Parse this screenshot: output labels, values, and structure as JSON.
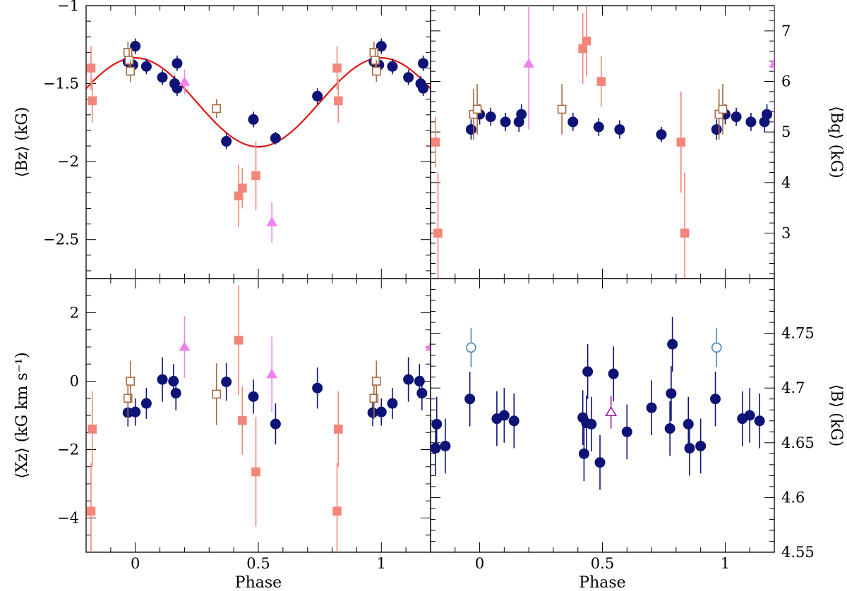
{
  "colors": {
    "navy": "#0e1377",
    "salmon": "#f3857a",
    "brown": "#a86a45",
    "violet": "#ee82ee",
    "purple": "#a21ca2",
    "steel": "#4a86be",
    "fit": "#dd1616"
  },
  "chart_data": [
    {
      "type": "scatter",
      "panel": "top-left",
      "ylabel": "⟨Bz⟩ (kG)",
      "xlabel": "",
      "xlim": [
        -0.2,
        1.2
      ],
      "ylim": [
        -2.75,
        -1.0
      ],
      "yticks": [
        -1,
        -1.5,
        -2,
        -2.5
      ],
      "yticklabels": [
        "−1",
        "−1.5",
        "−2",
        "−2.5"
      ],
      "xticklabels": [],
      "fit": {
        "label": "sinusoid fit",
        "mean": -1.62,
        "amplitude": 0.285,
        "peak_phase": 0.0
      },
      "series": [
        {
          "name": "navy filled circles",
          "marker": "circle",
          "filled": true,
          "color": "navy",
          "points": [
            [
              -0.03,
              -1.36,
              0.04
            ],
            [
              -0.01,
              -1.38,
              0.04
            ],
            [
              0.0,
              -1.26,
              0.05
            ],
            [
              0.045,
              -1.39,
              0.05
            ],
            [
              0.11,
              -1.46,
              0.05
            ],
            [
              0.16,
              -1.5,
              0.05
            ],
            [
              0.17,
              -1.53,
              0.05
            ],
            [
              0.17,
              -1.37,
              0.05
            ],
            [
              0.37,
              -1.87,
              0.05
            ],
            [
              0.48,
              -1.73,
              0.05
            ],
            [
              0.57,
              -1.85,
              0.04
            ],
            [
              0.74,
              -1.58,
              0.05
            ],
            [
              0.97,
              -1.36,
              0.04
            ],
            [
              0.99,
              -1.38,
              0.04
            ],
            [
              1.0,
              -1.26,
              0.05
            ],
            [
              1.045,
              -1.39,
              0.05
            ],
            [
              1.11,
              -1.46,
              0.05
            ],
            [
              1.16,
              -1.5,
              0.05
            ],
            [
              1.17,
              -1.53,
              0.05
            ],
            [
              1.17,
              -1.37,
              0.05
            ]
          ]
        },
        {
          "name": "salmon filled squares",
          "marker": "square",
          "filled": true,
          "color": "salmon",
          "points": [
            [
              -0.18,
              -1.4,
              0.14
            ],
            [
              -0.175,
              -1.61,
              0.14
            ],
            [
              0.42,
              -2.22,
              0.2
            ],
            [
              0.435,
              -2.17,
              0.13
            ],
            [
              0.49,
              -2.09,
              0.22
            ],
            [
              0.82,
              -1.4,
              0.14
            ],
            [
              0.825,
              -1.61,
              0.14
            ]
          ]
        },
        {
          "name": "brown open squares",
          "marker": "square",
          "filled": false,
          "color": "brown",
          "points": [
            [
              -0.03,
              -1.3,
              0.07
            ],
            [
              -0.025,
              -1.35,
              0.07
            ],
            [
              -0.02,
              -1.42,
              0.07
            ],
            [
              0.33,
              -1.66,
              0.06
            ],
            [
              0.97,
              -1.3,
              0.07
            ],
            [
              0.975,
              -1.35,
              0.07
            ],
            [
              0.98,
              -1.42,
              0.07
            ]
          ]
        },
        {
          "name": "violet filled triangles",
          "marker": "triangle",
          "filled": true,
          "color": "violet",
          "points": [
            [
              0.2,
              -1.49,
              0.08
            ],
            [
              0.555,
              -2.39,
              0.13
            ]
          ]
        }
      ]
    },
    {
      "type": "scatter",
      "panel": "top-right",
      "ylabel": "⟨Bq⟩ (kG)",
      "xlabel": "",
      "xlim": [
        -0.2,
        1.2
      ],
      "ylim": [
        2.1,
        7.5
      ],
      "yticks": [
        3,
        4,
        5,
        6,
        7
      ],
      "yticklabels": [
        "3",
        "4",
        "5",
        "6",
        "7"
      ],
      "xticklabels": [],
      "series": [
        {
          "name": "navy filled circles",
          "marker": "circle",
          "filled": true,
          "color": "navy",
          "points": [
            [
              -0.035,
              5.05,
              0.2
            ],
            [
              0.0,
              5.35,
              0.2
            ],
            [
              0.045,
              5.3,
              0.18
            ],
            [
              0.105,
              5.2,
              0.18
            ],
            [
              0.16,
              5.2,
              0.2
            ],
            [
              0.17,
              5.35,
              0.2
            ],
            [
              0.38,
              5.2,
              0.18
            ],
            [
              0.485,
              5.1,
              0.18
            ],
            [
              0.57,
              5.05,
              0.18
            ],
            [
              0.74,
              4.95,
              0.15
            ],
            [
              0.965,
              5.05,
              0.2
            ],
            [
              1.0,
              5.35,
              0.2
            ],
            [
              1.045,
              5.3,
              0.18
            ],
            [
              1.105,
              5.2,
              0.18
            ],
            [
              1.16,
              5.2,
              0.2
            ],
            [
              1.17,
              5.35,
              0.2
            ]
          ]
        },
        {
          "name": "salmon filled squares",
          "marker": "square",
          "filled": true,
          "color": "salmon",
          "points": [
            [
              -0.18,
              4.8,
              0.5
            ],
            [
              -0.17,
              3.0,
              1.2
            ],
            [
              0.42,
              6.65,
              0.7
            ],
            [
              0.435,
              6.8,
              0.7
            ],
            [
              0.495,
              6.0,
              0.5
            ],
            [
              0.82,
              4.8,
              1.0
            ],
            [
              0.835,
              3.0,
              1.2
            ]
          ]
        },
        {
          "name": "brown open squares",
          "marker": "square",
          "filled": false,
          "color": "brown",
          "points": [
            [
              -0.025,
              5.35,
              0.5
            ],
            [
              -0.01,
              5.45,
              0.5
            ],
            [
              0.335,
              5.45,
              0.5
            ],
            [
              0.975,
              5.35,
              0.5
            ],
            [
              0.99,
              5.45,
              0.5
            ]
          ]
        },
        {
          "name": "violet filled triangles",
          "marker": "triangle",
          "filled": true,
          "color": "violet",
          "points": [
            [
              0.2,
              6.35,
              1.3
            ],
            [
              1.2,
              6.35,
              1.3
            ]
          ]
        }
      ]
    },
    {
      "type": "scatter",
      "panel": "bottom-left",
      "ylabel": "⟨Xz⟩ (kG km s⁻¹)",
      "xlabel": "Phase",
      "xlim": [
        -0.2,
        1.2
      ],
      "ylim": [
        -5.0,
        3.0
      ],
      "yticks": [
        2,
        0,
        -2,
        -4
      ],
      "yticklabels": [
        "2",
        "0",
        "−2",
        "−4"
      ],
      "xticks": [
        0,
        0.5,
        1
      ],
      "xticklabels": [
        "0",
        "0.5",
        "1"
      ],
      "series": [
        {
          "name": "navy filled circles",
          "marker": "circle",
          "filled": true,
          "color": "navy",
          "points": [
            [
              -0.03,
              -0.92,
              0.4
            ],
            [
              0.0,
              -0.9,
              0.4
            ],
            [
              0.045,
              -0.65,
              0.45
            ],
            [
              0.11,
              0.05,
              0.65
            ],
            [
              0.155,
              0.0,
              0.5
            ],
            [
              0.165,
              -0.35,
              0.5
            ],
            [
              0.37,
              -0.02,
              0.55
            ],
            [
              0.48,
              -0.45,
              0.5
            ],
            [
              0.57,
              -1.25,
              0.6
            ],
            [
              0.74,
              -0.2,
              0.6
            ],
            [
              0.965,
              -0.92,
              0.4
            ],
            [
              1.0,
              -0.9,
              0.4
            ],
            [
              1.045,
              -0.65,
              0.45
            ],
            [
              1.11,
              0.05,
              0.65
            ],
            [
              1.155,
              0.0,
              0.5
            ],
            [
              1.165,
              -0.35,
              0.5
            ]
          ]
        },
        {
          "name": "salmon filled squares",
          "marker": "square",
          "filled": true,
          "color": "salmon",
          "points": [
            [
              -0.18,
              -3.8,
              1.4
            ],
            [
              -0.175,
              -1.4,
              1.1
            ],
            [
              0.42,
              1.2,
              1.6
            ],
            [
              0.435,
              -1.15,
              1.0
            ],
            [
              0.49,
              -2.65,
              1.6
            ],
            [
              0.82,
              -3.8,
              1.4
            ],
            [
              0.825,
              -1.4,
              1.1
            ]
          ]
        },
        {
          "name": "brown open squares",
          "marker": "square",
          "filled": false,
          "color": "brown",
          "points": [
            [
              -0.03,
              -0.5,
              0.6
            ],
            [
              -0.02,
              0.0,
              0.6
            ],
            [
              0.33,
              -0.38,
              0.9
            ],
            [
              0.97,
              -0.5,
              0.6
            ],
            [
              0.98,
              0.0,
              0.6
            ]
          ]
        },
        {
          "name": "violet filled triangles",
          "marker": "triangle",
          "filled": true,
          "color": "violet",
          "points": [
            [
              0.2,
              1.0,
              0.9
            ],
            [
              0.555,
              0.2,
              1.1
            ],
            [
              1.2,
              1.0,
              0.9
            ]
          ]
        }
      ]
    },
    {
      "type": "scatter",
      "panel": "bottom-right",
      "ylabel": "⟨B⟩ (kG)",
      "xlabel": "Phase",
      "xlim": [
        -0.2,
        1.2
      ],
      "ylim": [
        4.55,
        4.8
      ],
      "yticks": [
        4.55,
        4.6,
        4.65,
        4.7,
        4.75
      ],
      "yticklabels": [
        "4.55",
        "4.6",
        "4.65",
        "4.7",
        "4.75"
      ],
      "xticks": [
        0,
        0.5,
        1
      ],
      "xticklabels": [
        "0",
        "0.5",
        "1"
      ],
      "series": [
        {
          "name": "navy filled circles",
          "marker": "circle",
          "filled": true,
          "color": "navy",
          "points": [
            [
              -0.18,
              4.645,
              0.025
            ],
            [
              -0.175,
              4.667,
              0.025
            ],
            [
              -0.14,
              4.647,
              0.025
            ],
            [
              -0.04,
              4.69,
              0.025
            ],
            [
              0.07,
              4.672,
              0.025
            ],
            [
              0.1,
              4.675,
              0.025
            ],
            [
              0.14,
              4.67,
              0.025
            ],
            [
              0.42,
              4.673,
              0.025
            ],
            [
              0.425,
              4.64,
              0.025
            ],
            [
              0.435,
              4.668,
              0.025
            ],
            [
              0.44,
              4.715,
              0.025
            ],
            [
              0.455,
              4.667,
              0.025
            ],
            [
              0.49,
              4.632,
              0.025
            ],
            [
              0.545,
              4.713,
              0.025
            ],
            [
              0.6,
              4.66,
              0.025
            ],
            [
              0.7,
              4.682,
              0.025
            ],
            [
              0.775,
              4.663,
              0.025
            ],
            [
              0.78,
              4.695,
              0.025
            ],
            [
              0.785,
              4.74,
              0.025
            ],
            [
              0.85,
              4.667,
              0.025
            ],
            [
              0.855,
              4.645,
              0.025
            ],
            [
              0.9,
              4.647,
              0.025
            ],
            [
              0.96,
              4.69,
              0.025
            ],
            [
              1.07,
              4.672,
              0.025
            ],
            [
              1.1,
              4.675,
              0.025
            ],
            [
              1.14,
              4.67,
              0.025
            ]
          ]
        },
        {
          "name": "steel-blue open circles",
          "marker": "circle",
          "filled": false,
          "color": "steel",
          "points": [
            [
              -0.035,
              4.737,
              0.018
            ],
            [
              0.965,
              4.737,
              0.018
            ]
          ]
        },
        {
          "name": "purple open triangle",
          "marker": "triangle",
          "filled": false,
          "color": "purple",
          "points": [
            [
              0.535,
              4.678,
              0.015
            ]
          ]
        }
      ]
    }
  ]
}
